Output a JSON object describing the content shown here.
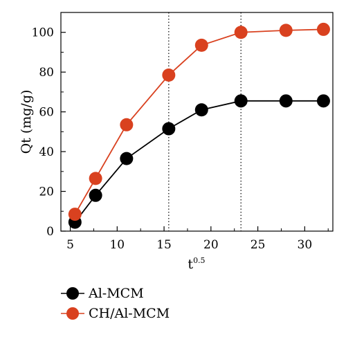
{
  "chart_data": {
    "type": "line",
    "xlabel": "t",
    "xlabel_superscript": "0.5",
    "ylabel": "Qt (mg/g)",
    "xlim": [
      4,
      33
    ],
    "ylim": [
      0,
      110
    ],
    "xticks": [
      5,
      10,
      15,
      20,
      25,
      30
    ],
    "yticks": [
      0,
      20,
      40,
      60,
      80,
      100
    ],
    "x": [
      5.5,
      7.7,
      11.0,
      15.5,
      19.0,
      23.2,
      28.0,
      32.0
    ],
    "series": [
      {
        "name": "Al-MCM",
        "color": "#000000",
        "values": [
          4.5,
          18.0,
          36.5,
          51.5,
          61.0,
          65.5,
          65.5,
          65.5
        ]
      },
      {
        "name": "CH/Al-MCM",
        "color": "#d9411f",
        "values": [
          8.5,
          26.5,
          53.5,
          78.5,
          93.5,
          100.0,
          101.0,
          101.5
        ]
      }
    ],
    "reference_lines_x": [
      15.5,
      23.2
    ],
    "grid": false,
    "legend_position": "bottom-left"
  }
}
